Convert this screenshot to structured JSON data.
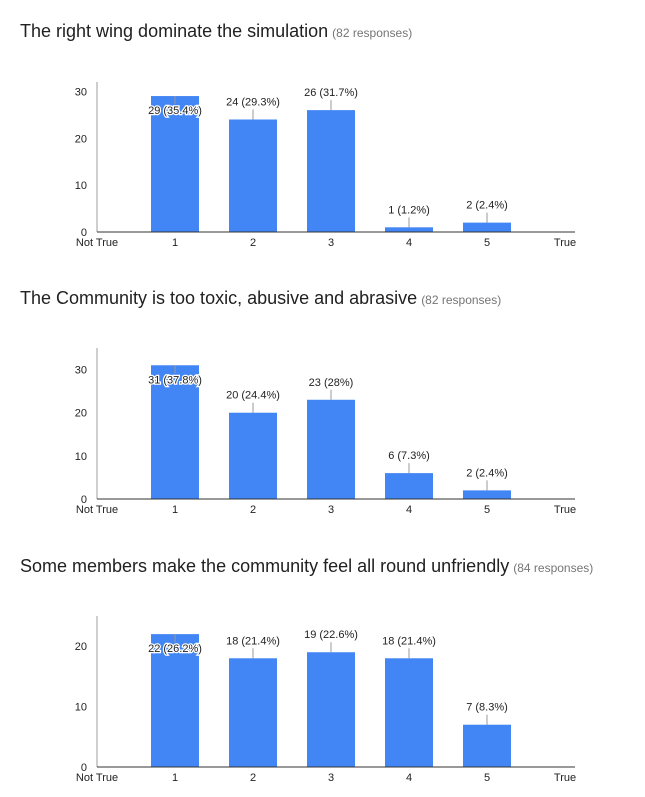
{
  "chart_data": [
    {
      "type": "bar",
      "title": "The right wing dominate the simulation",
      "responses": "(82 responses)",
      "categories": [
        "1",
        "2",
        "3",
        "4",
        "5"
      ],
      "axis_left_label": "Not True",
      "axis_right_label": "True",
      "values": [
        29,
        24,
        26,
        1,
        2
      ],
      "labels": [
        "29 (35.4%)",
        "24 (29.3%)",
        "26 (31.7%)",
        "1 (1.2%)",
        "2 (2.4%)"
      ],
      "yticks": [
        0,
        10,
        20,
        30
      ],
      "ylim": [
        0,
        32
      ],
      "color": "#4285f4"
    },
    {
      "type": "bar",
      "title": "The Community is too toxic, abusive and abrasive",
      "responses": "(82 responses)",
      "categories": [
        "1",
        "2",
        "3",
        "4",
        "5"
      ],
      "axis_left_label": "Not True",
      "axis_right_label": "True",
      "values": [
        31,
        20,
        23,
        6,
        2
      ],
      "labels": [
        "31 (37.8%)",
        "20 (24.4%)",
        "23 (28%)",
        "6 (7.3%)",
        "2 (2.4%)"
      ],
      "yticks": [
        0,
        10,
        20,
        30
      ],
      "ylim": [
        0,
        35
      ],
      "color": "#4285f4"
    },
    {
      "type": "bar",
      "title": "Some members make the community feel all round unfriendly",
      "responses": "(84 responses)",
      "categories": [
        "1",
        "2",
        "3",
        "4",
        "5"
      ],
      "axis_left_label": "Not True",
      "axis_right_label": "True",
      "values": [
        22,
        18,
        19,
        18,
        7
      ],
      "labels": [
        "22 (26.2%)",
        "18 (21.4%)",
        "19 (22.6%)",
        "18 (21.4%)",
        "7 (8.3%)"
      ],
      "yticks": [
        0,
        10,
        20
      ],
      "ylim": [
        0,
        25
      ],
      "color": "#4285f4"
    }
  ]
}
